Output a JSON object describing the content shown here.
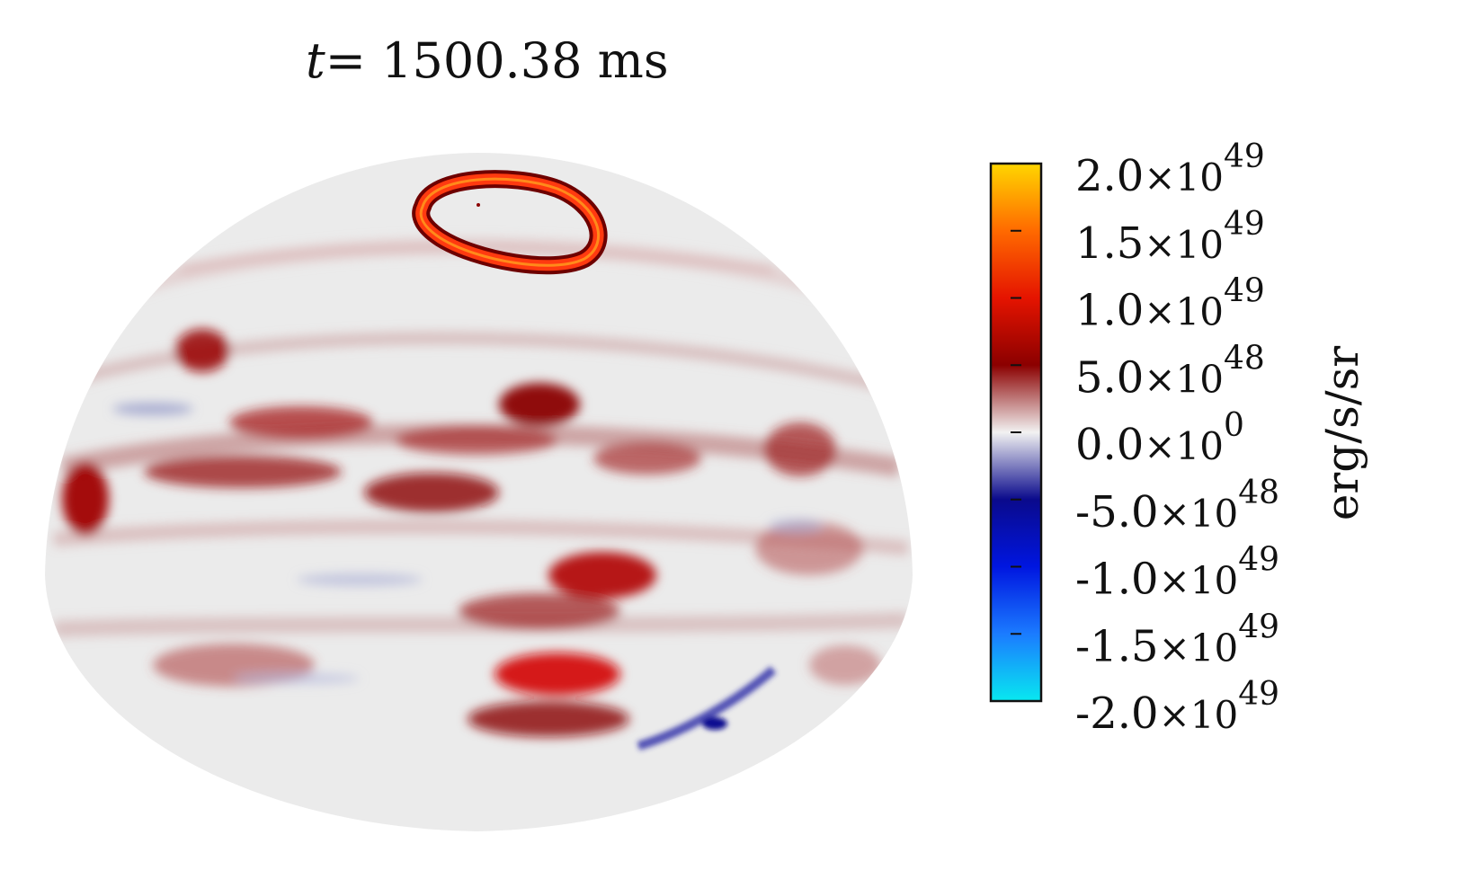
{
  "title": {
    "variable": "t",
    "equals": "=",
    "value": "1500.38",
    "unit": "ms"
  },
  "chart_data": {
    "type": "heatmap",
    "projection": "hemisphere",
    "title": "t= 1500.38 ms",
    "colorbar": {
      "label": "erg/s/sr",
      "range": [
        -2e+49,
        2e+49
      ],
      "ticks": [
        {
          "value": 2e+49,
          "mantissa": "2.0",
          "exponent": "49"
        },
        {
          "value": 1.5e+49,
          "mantissa": "1.5",
          "exponent": "49"
        },
        {
          "value": 1e+49,
          "mantissa": "1.0",
          "exponent": "49"
        },
        {
          "value": 5e+48,
          "mantissa": "5.0",
          "exponent": "48"
        },
        {
          "value": 0,
          "mantissa": "0.0",
          "exponent": "0"
        },
        {
          "value": -5e+48,
          "mantissa": "-5.0",
          "exponent": "48"
        },
        {
          "value": -1e+49,
          "mantissa": "-1.0",
          "exponent": "49"
        },
        {
          "value": -1.5e+49,
          "mantissa": "-1.5",
          "exponent": "49"
        },
        {
          "value": -2e+49,
          "mantissa": "-2.0",
          "exponent": "49"
        }
      ],
      "colormap": [
        {
          "value": 2e+49,
          "color": "#ffd600"
        },
        {
          "value": 1.5e+49,
          "color": "#ff6a00"
        },
        {
          "value": 1e+49,
          "color": "#e51400"
        },
        {
          "value": 5e+48,
          "color": "#8b0000"
        },
        {
          "value": 0,
          "color": "#f2f2f2"
        },
        {
          "value": -5e+48,
          "color": "#0a0a8c"
        },
        {
          "value": -1e+49,
          "color": "#0016e0"
        },
        {
          "value": -1.5e+49,
          "color": "#1b7bff"
        },
        {
          "value": -2e+49,
          "color": "#08e8f0"
        }
      ]
    }
  }
}
